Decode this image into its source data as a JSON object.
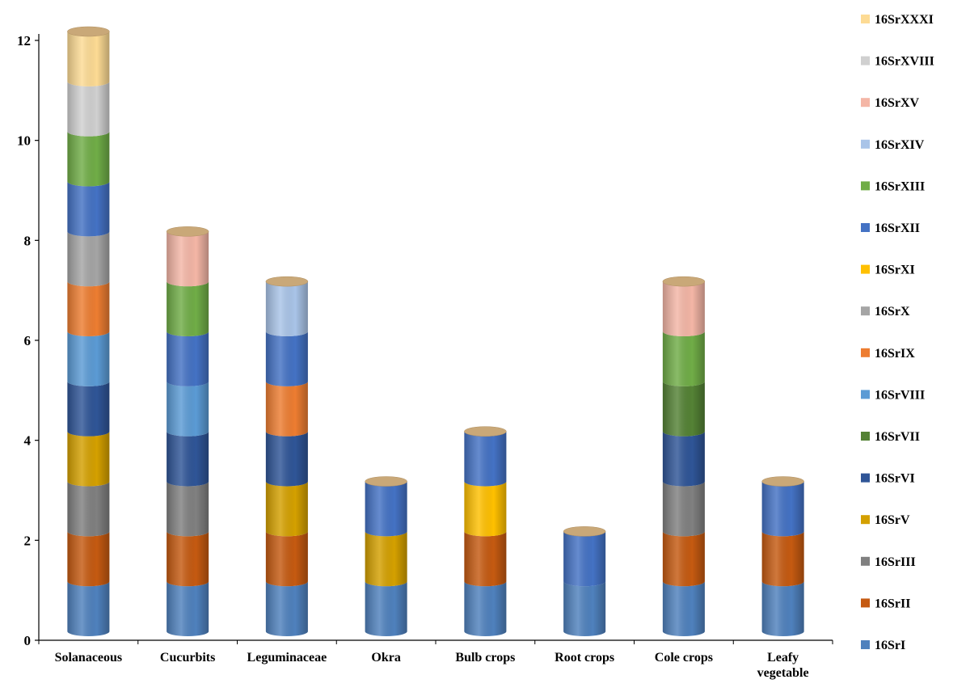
{
  "chart_data": {
    "type": "bar",
    "stacked": true,
    "style": "3d-cylinder",
    "title": "",
    "xlabel": "",
    "ylabel": "",
    "ylim": [
      0,
      12
    ],
    "yticks": [
      "0",
      "2",
      "4",
      "6",
      "8",
      "10",
      "12"
    ],
    "grid": false,
    "legend_position": "right",
    "categories": [
      "Solanaceous",
      "Cucurbits",
      "Leguminaceae",
      "Okra",
      "Bulb crops",
      "Root crops",
      "Cole crops",
      "Leafy vegetable"
    ],
    "series": [
      {
        "name": "16SrI",
        "color": "#4F81BD",
        "values": [
          1,
          1,
          1,
          1,
          1,
          1,
          1,
          1
        ]
      },
      {
        "name": "16SrII",
        "color": "#C55A11",
        "values": [
          1,
          1,
          1,
          0,
          1,
          0,
          1,
          1
        ]
      },
      {
        "name": "16SrIII",
        "color": "#808080",
        "values": [
          1,
          1,
          0,
          0,
          0,
          0,
          1,
          0
        ]
      },
      {
        "name": "16SrV",
        "color": "#D4A000",
        "values": [
          1,
          0,
          1,
          1,
          0,
          0,
          0,
          0
        ]
      },
      {
        "name": "16SrVI",
        "color": "#2F5597",
        "values": [
          1,
          1,
          1,
          0,
          0,
          0,
          1,
          0
        ]
      },
      {
        "name": "16SrVII",
        "color": "#548235",
        "values": [
          0,
          0,
          0,
          0,
          0,
          0,
          1,
          0
        ]
      },
      {
        "name": "16SrVIII",
        "color": "#5B9BD5",
        "values": [
          1,
          1,
          0,
          0,
          0,
          0,
          0,
          0
        ]
      },
      {
        "name": "16SrIX",
        "color": "#ED7D31",
        "values": [
          1,
          0,
          1,
          0,
          0,
          0,
          0,
          0
        ]
      },
      {
        "name": "16SrX",
        "color": "#A5A5A5",
        "values": [
          1,
          0,
          0,
          0,
          0,
          0,
          0,
          0
        ]
      },
      {
        "name": "16SrXI",
        "color": "#FFC000",
        "values": [
          0,
          0,
          0,
          0,
          1,
          0,
          0,
          0
        ]
      },
      {
        "name": "16SrXII",
        "color": "#4472C4",
        "values": [
          1,
          1,
          1,
          1,
          1,
          1,
          0,
          1
        ]
      },
      {
        "name": "16SrXIII",
        "color": "#70AD47",
        "values": [
          1,
          1,
          0,
          0,
          0,
          0,
          1,
          0
        ]
      },
      {
        "name": "16SrXIV",
        "color": "#A9C4E8",
        "values": [
          0,
          0,
          1,
          0,
          0,
          0,
          0,
          0
        ]
      },
      {
        "name": "16SrXV",
        "color": "#F4B6A6",
        "values": [
          0,
          1,
          0,
          0,
          0,
          0,
          1,
          0
        ]
      },
      {
        "name": "16SrXVIII",
        "color": "#D0D0D0",
        "values": [
          1,
          0,
          0,
          0,
          0,
          0,
          0,
          0
        ]
      },
      {
        "name": "16SrXXXI",
        "color": "#FDDB94",
        "values": [
          1,
          0,
          0,
          0,
          0,
          0,
          0,
          0
        ]
      }
    ],
    "top_cap_color": "#C9A878"
  }
}
